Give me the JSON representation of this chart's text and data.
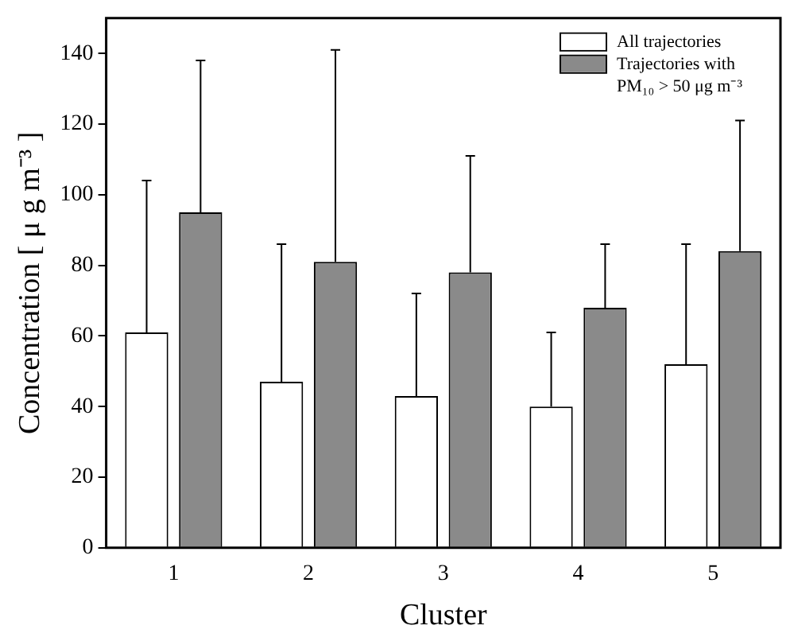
{
  "chart_data": {
    "type": "bar",
    "xlabel": "Cluster",
    "ylabel": "Concentration [ μ g m⁻³ ]",
    "categories": [
      "1",
      "2",
      "3",
      "4",
      "5"
    ],
    "series": [
      {
        "name": "All trajectories",
        "color": "#ffffff",
        "values": [
          61,
          47,
          43,
          40,
          52
        ],
        "errors": [
          [
            61,
            104
          ],
          [
            47,
            86
          ],
          [
            43,
            72
          ],
          [
            40,
            61
          ],
          [
            52,
            86
          ]
        ]
      },
      {
        "name": "Trajectories with PM₁₀ > 50 μg m⁻³",
        "color": "#8a8a8a",
        "values": [
          95,
          81,
          78,
          68,
          84
        ],
        "errors": [
          [
            95,
            138
          ],
          [
            81,
            141
          ],
          [
            78,
            111
          ],
          [
            68,
            86
          ],
          [
            84,
            121
          ]
        ]
      }
    ],
    "ylim": [
      0,
      150
    ],
    "yticks": [
      0,
      20,
      40,
      60,
      80,
      100,
      120,
      140
    ],
    "grid": false,
    "legend": "top right"
  }
}
